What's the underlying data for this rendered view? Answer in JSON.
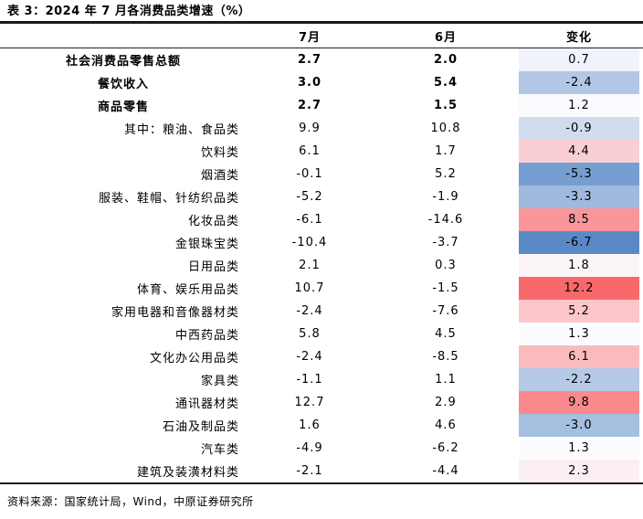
{
  "title": "表 3：2024 年 7 月各消费品类增速（%）",
  "footer": "资料来源：国家统计局，Wind，中原证券研究所",
  "chart_data": {
    "type": "table",
    "title": "表 3：2024 年 7 月各消费品类增速（%）",
    "columns": [
      "7月",
      "6月",
      "变化"
    ],
    "color_scale": {
      "applies_to": "变化",
      "type": "3-color-diverging",
      "min_color": "#5A8AC6",
      "mid_color": "#FCFCFF",
      "max_color": "#F8696B"
    },
    "rows": [
      {
        "label": "社会消费品零售总额",
        "jul": "2.7",
        "jun": "2.0",
        "change": "0.7",
        "change_color": "#F0F3FB"
      },
      {
        "label": "餐饮收入",
        "jul": "3.0",
        "jun": "5.4",
        "change": "-2.4",
        "change_color": "#B1C7E5"
      },
      {
        "label": "商品零售",
        "jul": "2.7",
        "jun": "1.5",
        "change": "1.2",
        "change_color": "#FAFBFE"
      },
      {
        "label": "其中：粮油、食品类",
        "jul": "9.9",
        "jun": "10.8",
        "change": "-0.9",
        "change_color": "#CFDDEF"
      },
      {
        "label": "饮料类",
        "jul": "6.1",
        "jun": "1.7",
        "change": "4.4",
        "change_color": "#FACFD3"
      },
      {
        "label": "烟酒类",
        "jul": "-0.1",
        "jun": "5.2",
        "change": "-5.3",
        "change_color": "#769ED0"
      },
      {
        "label": "服装、鞋帽、针纺织品类",
        "jul": "-5.2",
        "jun": "-1.9",
        "change": "-3.3",
        "change_color": "#9FBADE"
      },
      {
        "label": "化妆品类",
        "jul": "-6.1",
        "jun": "-14.6",
        "change": "8.5",
        "change_color": "#F9969A"
      },
      {
        "label": "金银珠宝类",
        "jul": "-10.4",
        "jun": "-3.7",
        "change": "-6.7",
        "change_color": "#5A8AC6"
      },
      {
        "label": "日用品类",
        "jul": "2.1",
        "jun": "0.3",
        "change": "1.8",
        "change_color": "#FCF5F8"
      },
      {
        "label": "体育、娱乐用品类",
        "jul": "10.7",
        "jun": "-1.5",
        "change": "12.2",
        "change_color": "#F8696B"
      },
      {
        "label": "家用电器和音像器材类",
        "jul": "-2.4",
        "jun": "-7.6",
        "change": "5.2",
        "change_color": "#FBC7CA"
      },
      {
        "label": "中西药品类",
        "jul": "5.8",
        "jun": "4.5",
        "change": "1.3",
        "change_color": "#FCFCFF"
      },
      {
        "label": "文化办公用品类",
        "jul": "-2.4",
        "jun": "-8.5",
        "change": "6.1",
        "change_color": "#FABBBE"
      },
      {
        "label": "家具类",
        "jul": "-1.1",
        "jun": "1.1",
        "change": "-2.2",
        "change_color": "#B5CAE6"
      },
      {
        "label": "通讯器材类",
        "jul": "12.7",
        "jun": "2.9",
        "change": "9.8",
        "change_color": "#F9898C"
      },
      {
        "label": "石油及制品类",
        "jul": "1.6",
        "jun": "4.6",
        "change": "-3.0",
        "change_color": "#A5BFE0"
      },
      {
        "label": "汽车类",
        "jul": "-4.9",
        "jun": "-6.2",
        "change": "1.3",
        "change_color": "#FCFCFF"
      },
      {
        "label": "建筑及装潢材料类",
        "jul": "-2.1",
        "jun": "-4.4",
        "change": "2.3",
        "change_color": "#FCEFF1"
      }
    ]
  }
}
